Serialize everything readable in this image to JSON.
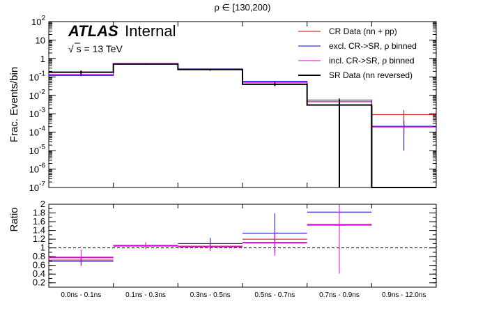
{
  "chart_data": [
    {
      "type": "histogram",
      "title": "ρ ∈ [130,200)",
      "ylabel": "Frac. Events/bin",
      "yscale": "log",
      "ylim": [
        1e-07,
        100
      ],
      "y_ticks": [
        {
          "value": 100,
          "base": "10",
          "exp": "2"
        },
        {
          "value": 10,
          "base": "10",
          "exp": ""
        },
        {
          "value": 1,
          "base": "1",
          "exp": ""
        },
        {
          "value": 0.1,
          "base": "10",
          "exp": "-1"
        },
        {
          "value": 0.01,
          "base": "10",
          "exp": "-2"
        },
        {
          "value": 0.001,
          "base": "10",
          "exp": "-3"
        },
        {
          "value": 0.0001,
          "base": "10",
          "exp": "-4"
        },
        {
          "value": 1e-05,
          "base": "10",
          "exp": "-5"
        },
        {
          "value": 1e-06,
          "base": "10",
          "exp": "-6"
        },
        {
          "value": 1e-07,
          "base": "10",
          "exp": "-7"
        }
      ],
      "categories": [
        "0.0ns - 0.1ns",
        "0.1ns - 0.3ns",
        "0.3ns - 0.5ns",
        "0.5ns - 0.7ns",
        "0.7ns - 0.9ns",
        "0.9ns - 12.0ns"
      ],
      "annotations": {
        "atlas": "ATLAS",
        "internal": "Internal",
        "sqrt_symbol": "√",
        "energy": "s = 13 TeV"
      },
      "series": [
        {
          "name": "CR Data (nn + pp)",
          "color": "#cc0000",
          "values": [
            0.13,
            0.53,
            0.26,
            0.052,
            0.0045,
            0.0009
          ],
          "errors": [
            0.01,
            0.02,
            0.01,
            0.004,
            0.0015,
            0.0007
          ],
          "width": 1
        },
        {
          "name": "excl. CR->SR, ρ binned",
          "color": "#0000cc",
          "values": [
            0.12,
            0.52,
            0.27,
            0.058,
            0.0055,
            0.00021
          ],
          "errors": [
            0.01,
            0.02,
            0.01,
            0.004,
            0.0015,
            0.0002
          ],
          "width": 1
        },
        {
          "name": "incl. CR->SR, ρ binned",
          "color": "#e000e0",
          "values": [
            0.135,
            0.53,
            0.255,
            0.05,
            0.0046,
            0.00019
          ],
          "errors": [
            0.01,
            0.02,
            0.01,
            0.004,
            0.0015,
            0.0001
          ],
          "width": 1
        },
        {
          "name": "SR Data (nn reversed)",
          "color": "#000000",
          "values": [
            0.18,
            0.5,
            0.25,
            0.04,
            0.003,
            0.0
          ],
          "errors": [
            0.04,
            0.04,
            0.03,
            0.008,
            0.003,
            0.0
          ],
          "width": 2
        }
      ]
    },
    {
      "type": "histogram",
      "ylabel": "Ratio",
      "ylim": [
        0.1,
        2.0
      ],
      "y_ticks": [
        "0.2",
        "0.4",
        "0.6",
        "0.8",
        "1",
        "1.2",
        "1.4",
        "1.6",
        "1.8",
        "2"
      ],
      "reference_line": 1.0,
      "categories": [
        "0.0ns - 0.1ns",
        "0.1ns - 0.3ns",
        "0.3ns - 0.5ns",
        "0.5ns - 0.7ns",
        "0.7ns - 0.9ns",
        "0.9ns - 12.0ns"
      ],
      "series": [
        {
          "name": "CR Data (nn + pp)",
          "color": "#cc0000",
          "values": [
            0.72,
            1.06,
            1.04,
            1.2,
            1.52,
            null
          ],
          "errors": [
            0.05,
            0.05,
            0.05,
            0.1,
            0.4,
            null
          ],
          "width": 1
        },
        {
          "name": "excl. CR->SR, ρ binned",
          "color": "#0000cc",
          "values": [
            0.69,
            1.04,
            1.1,
            1.34,
            1.82,
            null
          ],
          "errors": [
            0.1,
            0.07,
            0.13,
            0.45,
            0.3,
            null
          ],
          "width": 1
        },
        {
          "name": "incl. CR->SR, ρ binned",
          "color": "#e000e0",
          "values": [
            0.78,
            1.05,
            1.03,
            1.12,
            1.53,
            null
          ],
          "errors": [
            0.18,
            0.08,
            0.1,
            0.3,
            1.12,
            null
          ],
          "width": 2
        }
      ]
    }
  ]
}
